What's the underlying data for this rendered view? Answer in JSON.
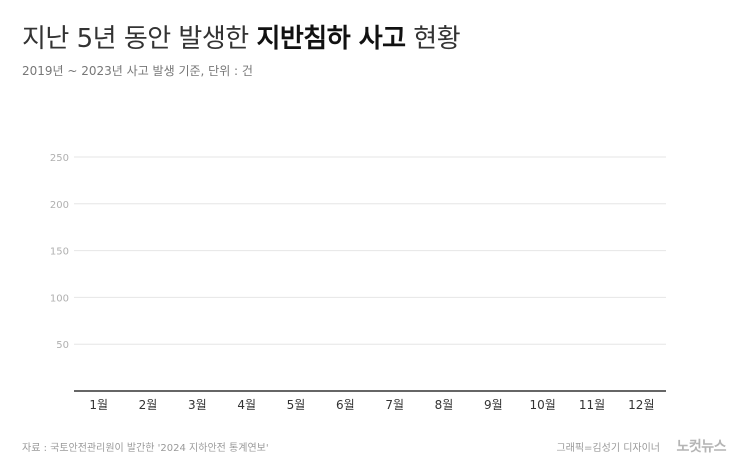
{
  "header": {
    "title_part1": "지난 5년 동안 발생한 ",
    "title_part2": "지반침하 사고",
    "title_part3": " 현황",
    "subtitle": "2019년 ~ 2023년 사고 발생 기준, 단위 : 건"
  },
  "footer": {
    "source": "자료 : 국토안전관리원이 발간한 '2024 지하안전 통계연보'",
    "credit": "그래픽=김성기 디자이너",
    "logo": "노컷뉴스"
  },
  "chart_data": {
    "type": "bar",
    "title": "지난 5년 동안 발생한 지반침하 사고 현황",
    "subtitle": "2019년 ~ 2023년 사고 발생 기준, 단위 : 건",
    "categories": [
      "1월",
      "2월",
      "3월",
      "4월",
      "5월",
      "6월",
      "7월",
      "8월",
      "9월",
      "10월",
      "11월",
      "12월"
    ],
    "yticks": [
      50,
      100,
      150,
      200,
      250
    ],
    "ylim": [
      0,
      270
    ],
    "grid": true,
    "series": [],
    "colors": {
      "grid": "#e6e6e6",
      "axis": "#333333",
      "tick_label": "#b0b0b0",
      "category_label": "#333333"
    }
  }
}
